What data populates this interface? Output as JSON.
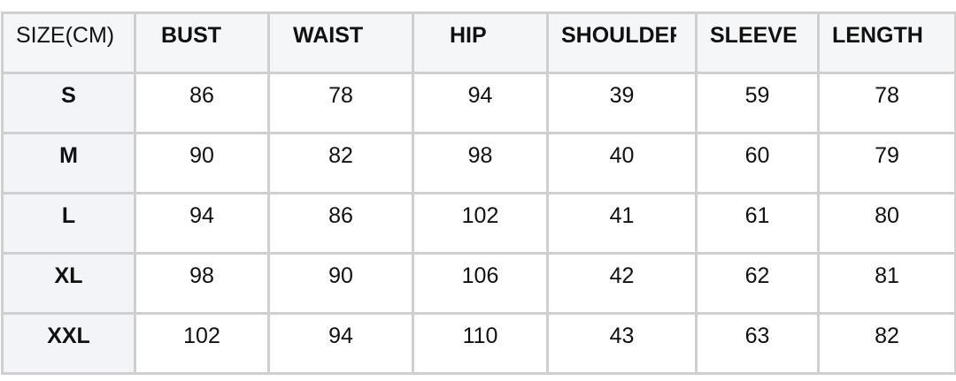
{
  "table": {
    "headers": [
      "SIZE(CM)",
      "BUST",
      "WAIST",
      "HIP",
      "SHOULDER",
      "SLEEVE",
      "LENGTH"
    ],
    "rows": [
      [
        "S",
        "86",
        "78",
        "94",
        "39",
        "59",
        "78"
      ],
      [
        "M",
        "90",
        "82",
        "98",
        "40",
        "60",
        "79"
      ],
      [
        "L",
        "94",
        "86",
        "102",
        "41",
        "61",
        "80"
      ],
      [
        "XL",
        "98",
        "90",
        "106",
        "42",
        "62",
        "81"
      ],
      [
        "XXL",
        "102",
        "94",
        "110",
        "43",
        "63",
        "82"
      ]
    ]
  }
}
